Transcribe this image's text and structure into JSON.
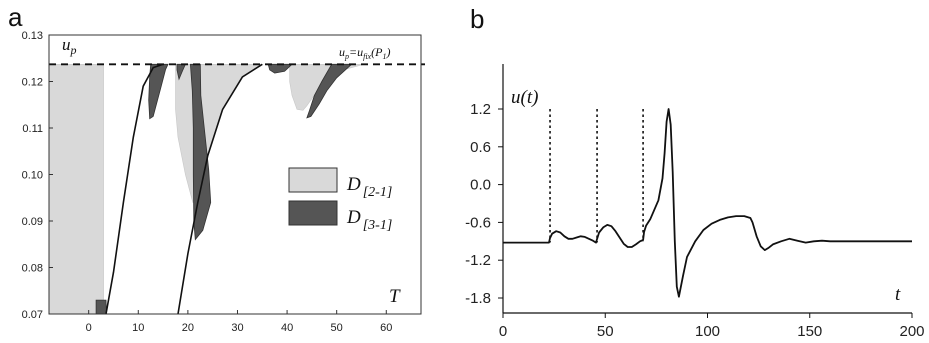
{
  "chart_data": [
    {
      "panel_label": "a",
      "type": "area",
      "xlabel": "T",
      "ylabel": "u",
      "ylabel_sub": "p",
      "xlim": [
        -8,
        67
      ],
      "ylim": [
        0.07,
        0.13
      ],
      "x_ticks": [
        "0",
        "10",
        "20",
        "30",
        "40",
        "50",
        "60"
      ],
      "y_ticks": [
        "0.07",
        "0.08",
        "0.09",
        "0.10",
        "0.11",
        "0.12",
        "0.13"
      ],
      "threshold": {
        "y": 0.1237,
        "label_main": "u",
        "label_sub": "p",
        "label_eq": "=u",
        "label_sub2": "fix",
        "label_arg": "(P",
        "label_arg_sub": "1",
        "label_close": ")"
      },
      "legend": [
        {
          "label": "D",
          "sub": "[2-1]",
          "color": "#d9d9d9"
        },
        {
          "label": "D",
          "sub": "[3-1]",
          "color": "#555555"
        }
      ],
      "boundary": [
        [
          3.5,
          0.07
        ],
        [
          5,
          0.079
        ],
        [
          7,
          0.094
        ],
        [
          9,
          0.108
        ],
        [
          11,
          0.119
        ],
        [
          13,
          0.123
        ],
        [
          15,
          0.1237
        ]
      ],
      "boundary2": [
        [
          18,
          0.07
        ],
        [
          20,
          0.083
        ],
        [
          22,
          0.094
        ],
        [
          24,
          0.104
        ],
        [
          27,
          0.114
        ],
        [
          31,
          0.121
        ],
        [
          35,
          0.1237
        ]
      ],
      "light_regions": [
        [
          [
            -8,
            0.1237
          ],
          [
            3,
            0.1237
          ],
          [
            3,
            0.07
          ],
          [
            -8,
            0.07
          ]
        ],
        [
          [
            17.5,
            0.1237
          ],
          [
            35,
            0.1237
          ],
          [
            31,
            0.121
          ],
          [
            27,
            0.114
          ],
          [
            24,
            0.104
          ],
          [
            22,
            0.094
          ],
          [
            21,
            0.094
          ],
          [
            19.5,
            0.1
          ],
          [
            18,
            0.108
          ],
          [
            17.5,
            0.114
          ]
        ],
        [
          [
            40.5,
            0.1237
          ],
          [
            55.5,
            0.1237
          ],
          [
            52,
            0.1227
          ],
          [
            49,
            0.1208
          ],
          [
            46,
            0.1178
          ],
          [
            44,
            0.1148
          ],
          [
            43.2,
            0.1138
          ],
          [
            42,
            0.114
          ],
          [
            41,
            0.117
          ],
          [
            40.5,
            0.12
          ]
        ]
      ],
      "dark_regions": [
        [
          [
            12.5,
            0.1237
          ],
          [
            16,
            0.1237
          ],
          [
            15.5,
            0.1226
          ],
          [
            14.5,
            0.1185
          ],
          [
            13,
            0.1125
          ],
          [
            12.3,
            0.112
          ],
          [
            12.1,
            0.116
          ],
          [
            12.3,
            0.121
          ]
        ],
        [
          [
            17.8,
            0.1237
          ],
          [
            19.5,
            0.1237
          ],
          [
            19,
            0.1225
          ],
          [
            18.2,
            0.1205
          ],
          [
            17.8,
            0.1225
          ]
        ],
        [
          [
            20.5,
            0.1237
          ],
          [
            22.5,
            0.1237
          ],
          [
            22.6,
            0.117
          ],
          [
            24.2,
            0.101
          ],
          [
            24.6,
            0.094
          ],
          [
            23,
            0.088
          ],
          [
            21.5,
            0.086
          ],
          [
            21.2,
            0.09
          ],
          [
            21.1,
            0.1
          ],
          [
            21.1,
            0.11
          ],
          [
            20.9,
            0.118
          ]
        ],
        [
          [
            36.2,
            0.1237
          ],
          [
            41,
            0.1237
          ],
          [
            39.5,
            0.1222
          ],
          [
            37.5,
            0.1218
          ],
          [
            36.5,
            0.1225
          ]
        ],
        [
          [
            49,
            0.1237
          ],
          [
            53,
            0.1237
          ],
          [
            50,
            0.1208
          ],
          [
            48,
            0.118
          ],
          [
            46.5,
            0.1152
          ],
          [
            44.8,
            0.1125
          ],
          [
            44,
            0.1122
          ],
          [
            44.5,
            0.1137
          ],
          [
            45.5,
            0.117
          ],
          [
            47,
            0.12
          ]
        ],
        [
          [
            1.5,
            0.073
          ],
          [
            3.5,
            0.073
          ],
          [
            3.6,
            0.07
          ],
          [
            1.5,
            0.07
          ]
        ]
      ]
    },
    {
      "panel_label": "b",
      "type": "line",
      "xlabel": "t",
      "ylabel": "u(t)",
      "xlim": [
        0,
        200
      ],
      "ylim": [
        -2.1,
        1.5
      ],
      "x_ticks": [
        "0",
        "50",
        "100",
        "150",
        "200"
      ],
      "y_ticks": [
        "1.2",
        "0.6",
        "0.0",
        "-0.6",
        "-1.2",
        "-1.8"
      ],
      "y_tick_values": [
        1.2,
        0.6,
        0.0,
        -0.6,
        -1.2,
        -1.8
      ],
      "x_tick_values": [
        0,
        50,
        100,
        150,
        200
      ],
      "vlines": [
        {
          "x": 23,
          "y_top": 1.2
        },
        {
          "x": 46,
          "y_top": 1.2
        },
        {
          "x": 68.5,
          "y_top": 1.2
        }
      ],
      "series": [
        {
          "x": [
            0,
            22.5,
            23,
            24,
            26,
            28,
            30,
            32,
            34,
            36,
            38,
            40,
            42,
            44,
            45.5,
            46,
            47,
            49,
            51,
            53,
            55,
            57,
            59,
            61,
            63,
            65,
            67,
            68.5,
            69,
            70,
            72,
            74,
            76,
            78,
            79,
            80,
            81,
            82,
            83,
            84,
            85,
            86,
            88,
            90,
            94,
            98,
            102,
            106,
            110,
            114,
            118,
            121,
            122,
            124,
            126,
            128,
            130,
            132,
            136,
            140,
            144,
            148,
            152,
            156,
            160,
            170,
            180,
            190,
            200
          ],
          "y": [
            -0.92,
            -0.92,
            -0.85,
            -0.78,
            -0.74,
            -0.76,
            -0.82,
            -0.86,
            -0.86,
            -0.84,
            -0.82,
            -0.83,
            -0.86,
            -0.89,
            -0.92,
            -0.86,
            -0.76,
            -0.68,
            -0.64,
            -0.66,
            -0.74,
            -0.84,
            -0.94,
            -0.99,
            -0.99,
            -0.95,
            -0.9,
            -0.88,
            -0.75,
            -0.65,
            -0.55,
            -0.4,
            -0.25,
            0.1,
            0.5,
            1.0,
            1.2,
            0.95,
            0.2,
            -0.9,
            -1.62,
            -1.78,
            -1.45,
            -1.15,
            -0.9,
            -0.72,
            -0.62,
            -0.56,
            -0.52,
            -0.5,
            -0.5,
            -0.53,
            -0.6,
            -0.82,
            -0.98,
            -1.04,
            -1.0,
            -0.95,
            -0.9,
            -0.86,
            -0.89,
            -0.92,
            -0.9,
            -0.89,
            -0.9,
            -0.9,
            -0.9,
            -0.9,
            -0.9
          ]
        }
      ]
    }
  ]
}
